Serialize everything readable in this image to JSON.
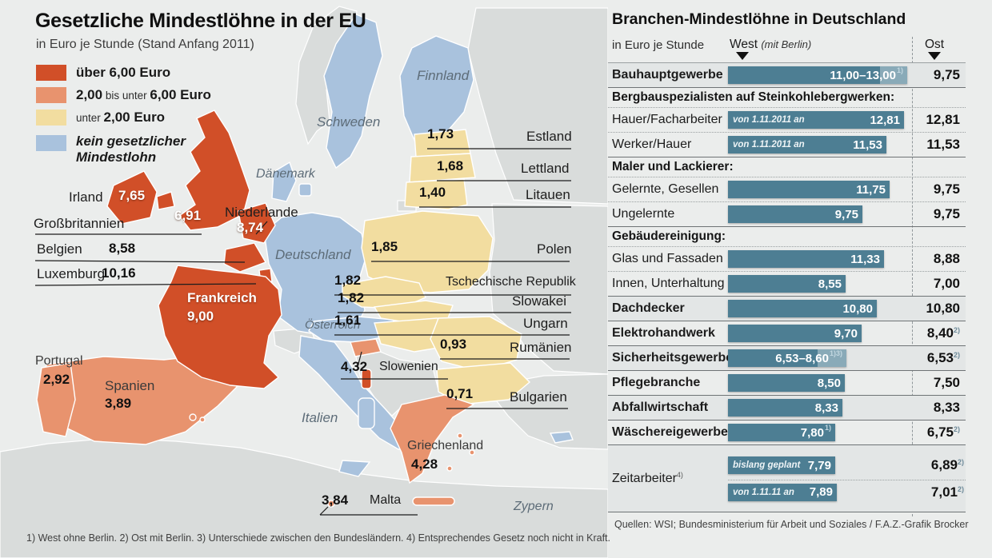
{
  "left": {
    "title": "Gesetzliche Mindestlöhne in der EU",
    "subtitle": "in Euro je Stunde (Stand Anfang 2011)",
    "legend": {
      "item1": {
        "label": "über 6,00 Euro"
      },
      "item2": {
        "bold1": "2,00",
        "mid": " bis unter ",
        "bold2": "6,00 Euro"
      },
      "item3": {
        "mid": "unter ",
        "bold": "2,00 Euro"
      },
      "item4": {
        "line1": "kein gesetzlicher",
        "line2": "Mindestlohn"
      }
    },
    "footnote": "1) West ohne Berlin. 2) Ost mit Berlin.  3) Unterschiede zwischen den Bundesländern. 4) Entsprechendes Gesetz noch nicht in Kraft."
  },
  "map": {
    "colors": {
      "over6": "#d14f28",
      "mid2to6": "#e8936e",
      "under2": "#f2dda0",
      "no_minimum": "#a9c2dd",
      "non_eu": "#d9dcdb",
      "bar_teal": "#4d7e93"
    },
    "sea": {
      "finnland": "Finnland",
      "schweden": "Schweden",
      "daenemark": "Dänemark",
      "deutschland": "Deutschland",
      "oesterreich": "Österreich",
      "italien": "Italien",
      "zypern": "Zypern"
    },
    "labels": {
      "irland": {
        "name": "Irland",
        "value": "7,65"
      },
      "grossbritannien": {
        "name": "Großbritannien",
        "value": "6,91"
      },
      "belgien": {
        "name": "Belgien",
        "value": "8,58"
      },
      "luxemburg": {
        "name": "Luxemburg",
        "value": "10,16"
      },
      "niederlande": {
        "name": "Niederlande",
        "value": "8,74"
      },
      "frankreich": {
        "name": "Frankreich",
        "value": "9,00"
      },
      "portugal": {
        "name": "Portugal",
        "value": "2,92"
      },
      "spanien": {
        "name": "Spanien",
        "value": "3,89"
      },
      "estland": {
        "name": "Estland",
        "value": "1,73"
      },
      "lettland": {
        "name": "Lettland",
        "value": "1,68"
      },
      "litauen": {
        "name": "Litauen",
        "value": "1,40"
      },
      "polen": {
        "name": "Polen",
        "value": "1,85"
      },
      "tschechien": {
        "name": "Tschechische Republik",
        "value": "1,82"
      },
      "slowakei": {
        "name": "Slowakei",
        "value": "1,82"
      },
      "ungarn": {
        "name": "Ungarn",
        "value": "1,61"
      },
      "rumaenien": {
        "name": "Rumänien",
        "value": "0,93"
      },
      "slowenien": {
        "name": "Slowenien",
        "value": "4,32"
      },
      "bulgarien": {
        "name": "Bulgarien",
        "value": "0,71"
      },
      "griechenland": {
        "name": "Griechenland",
        "value": "4,28"
      },
      "malta": {
        "name": "Malta",
        "value": "3,84"
      }
    }
  },
  "table": {
    "title": "Branchen-Mindestlöhne in Deutschland",
    "unit": "in Euro je Stunde",
    "col_west": "West ",
    "col_west_note": "(mit Berlin)",
    "col_ost": "Ost",
    "rows": [
      {
        "kind": "row",
        "label": "Bauhauptgewerbe",
        "bar": {
          "text": "11,00–13,00",
          "sup": "1)",
          "max": 13.0,
          "split": 11.0
        },
        "ost": "9,75"
      },
      {
        "kind": "section",
        "label": "Bergbauspezialisten auf Steinkohlebergwerken:"
      },
      {
        "kind": "row",
        "label": "Hauer/Facharbeiter",
        "bar": {
          "prefix": "von 1.11.2011 an",
          "text": "12,81",
          "max": 12.81
        },
        "ost": "12,81"
      },
      {
        "kind": "row",
        "label": "Werker/Hauer",
        "bar": {
          "prefix": "von 1.11.2011 an",
          "text": "11,53",
          "max": 11.53
        },
        "ost": "11,53"
      },
      {
        "kind": "section",
        "label": "Maler und Lackierer:"
      },
      {
        "kind": "row",
        "label": "Gelernte, Gesellen",
        "bar": {
          "text": "11,75",
          "max": 11.75
        },
        "ost": "9,75"
      },
      {
        "kind": "row",
        "label": "Ungelernte",
        "bar": {
          "text": "9,75",
          "max": 9.75
        },
        "ost": "9,75"
      },
      {
        "kind": "section",
        "label": "Gebäudereinigung:"
      },
      {
        "kind": "row",
        "label": "Glas und Fassaden",
        "bar": {
          "text": "11,33",
          "max": 11.33
        },
        "ost": "8,88"
      },
      {
        "kind": "row",
        "label": "Innen, Unterhaltung",
        "bar": {
          "text": "8,55",
          "max": 8.55
        },
        "ost": "7,00"
      },
      {
        "kind": "row",
        "label": "Dachdecker",
        "bar": {
          "text": "10,80",
          "max": 10.8
        },
        "ost": "10,80"
      },
      {
        "kind": "row",
        "label": "Elektrohandwerk",
        "bar": {
          "text": "9,70",
          "max": 9.7
        },
        "ost": "8,40",
        "ost_sup": "2)"
      },
      {
        "kind": "row",
        "label": "Sicherheitsgewerbe",
        "bar": {
          "text": "6,53–8,60",
          "sup": "1)3)",
          "max": 8.6,
          "split": 6.53
        },
        "ost": "6,53",
        "ost_sup": "2)"
      },
      {
        "kind": "row",
        "label": "Pflegebranche",
        "bar": {
          "text": "8,50",
          "max": 8.5
        },
        "ost": "7,50"
      },
      {
        "kind": "row",
        "label": "Abfallwirtschaft",
        "bar": {
          "text": "8,33",
          "max": 8.33
        },
        "ost": "8,33"
      },
      {
        "kind": "row",
        "label": "Wäschereigewerbe",
        "bar": {
          "text": "7,80",
          "sup": "1)",
          "max": 7.8
        },
        "ost": "6,75",
        "ost_sup": "2)"
      },
      {
        "kind": "row2",
        "label": "Zeitarbeiter",
        "label_sup": "4)",
        "bar1": {
          "prefix": "bislang geplant",
          "text": "7,79",
          "max": 7.79
        },
        "ost1": "6,89",
        "ost1_sup": "2)",
        "bar2": {
          "prefix": "von 1.11.11 an",
          "text": "7,89",
          "max": 7.89
        },
        "ost2": "7,01",
        "ost2_sup": "2)"
      }
    ],
    "source": "Quellen: WSI; Bundesministerium für Arbeit und Soziales / F.A.Z.-Grafik Brocker"
  },
  "chart_data": [
    {
      "type": "heatmap",
      "subtype": "choropleth-map",
      "title": "Gesetzliche Mindestlöhne in der EU",
      "unit": "Euro je Stunde",
      "as_of": "Anfang 2011",
      "legend": [
        "über 6,00 Euro",
        "2,00 bis unter 6,00 Euro",
        "unter 2,00 Euro",
        "kein gesetzlicher Mindestlohn"
      ],
      "values": {
        "Luxemburg": 10.16,
        "Frankreich": 9.0,
        "Niederlande": 8.74,
        "Belgien": 8.58,
        "Irland": 7.65,
        "Großbritannien": 6.91,
        "Slowenien": 4.32,
        "Griechenland": 4.28,
        "Spanien": 3.89,
        "Malta": 3.84,
        "Portugal": 2.92,
        "Polen": 1.85,
        "Tschechische Republik": 1.82,
        "Slowakei": 1.82,
        "Estland": 1.73,
        "Lettland": 1.68,
        "Ungarn": 1.61,
        "Litauen": 1.4,
        "Rumänien": 0.93,
        "Bulgarien": 0.71
      },
      "no_statutory_minimum": [
        "Schweden",
        "Finnland",
        "Dänemark",
        "Deutschland",
        "Österreich",
        "Italien",
        "Zypern"
      ]
    },
    {
      "type": "bar",
      "title": "Branchen-Mindestlöhne in Deutschland",
      "unit": "Euro je Stunde",
      "columns": [
        "West (mit Berlin)",
        "Ost"
      ],
      "rows": [
        {
          "sector": "Bauhauptgewerbe",
          "west": "11,00–13,00",
          "west_note": "1)",
          "ost": 9.75
        },
        {
          "group": "Bergbauspezialisten auf Steinkohlebergwerken",
          "sector": "Hauer/Facharbeiter",
          "west_prefix": "von 1.11.2011 an",
          "west": 12.81,
          "ost": 12.81
        },
        {
          "group": "Bergbauspezialisten auf Steinkohlebergwerken",
          "sector": "Werker/Hauer",
          "west_prefix": "von 1.11.2011 an",
          "west": 11.53,
          "ost": 11.53
        },
        {
          "group": "Maler und Lackierer",
          "sector": "Gelernte, Gesellen",
          "west": 11.75,
          "ost": 9.75
        },
        {
          "group": "Maler und Lackierer",
          "sector": "Ungelernte",
          "west": 9.75,
          "ost": 9.75
        },
        {
          "group": "Gebäudereinigung",
          "sector": "Glas und Fassaden",
          "west": 11.33,
          "ost": 8.88
        },
        {
          "group": "Gebäudereinigung",
          "sector": "Innen, Unterhaltung",
          "west": 8.55,
          "ost": 7.0
        },
        {
          "sector": "Dachdecker",
          "west": 10.8,
          "ost": 10.8
        },
        {
          "sector": "Elektrohandwerk",
          "west": 9.7,
          "ost": 8.4,
          "ost_note": "2)"
        },
        {
          "sector": "Sicherheitsgewerbe",
          "west": "6,53–8,60",
          "west_note": "1)3)",
          "ost": 6.53,
          "ost_note": "2)"
        },
        {
          "sector": "Pflegebranche",
          "west": 8.5,
          "ost": 7.5
        },
        {
          "sector": "Abfallwirtschaft",
          "west": 8.33,
          "ost": 8.33
        },
        {
          "sector": "Wäschereigewerbe",
          "west": 7.8,
          "west_note": "1)",
          "ost": 6.75,
          "ost_note": "2)"
        },
        {
          "sector": "Zeitarbeiter",
          "sector_note": "4)",
          "west_prefix": "bislang geplant",
          "west": 7.79,
          "ost": 6.89,
          "ost_note": "2)"
        },
        {
          "sector": "Zeitarbeiter",
          "sector_note": "4)",
          "west_prefix": "von 1.11.11 an",
          "west": 7.89,
          "ost": 7.01,
          "ost_note": "2)"
        }
      ]
    }
  ]
}
